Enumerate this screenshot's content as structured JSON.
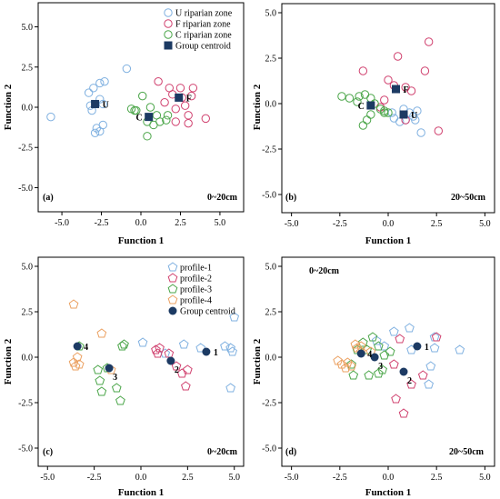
{
  "colors": {
    "blue": "#7fb0e0",
    "pink": "#d0406e",
    "green": "#4aa548",
    "orange": "#eba060",
    "navy": "#1c3a63",
    "axis": "#000000"
  },
  "chart_data": [
    {
      "type": "scatter",
      "panel": "(a)",
      "depth_label": "0~20cm",
      "xlabel": "Function 1",
      "ylabel": "Function 2",
      "xlim": [
        -6.5,
        6.5
      ],
      "ylim": [
        -6.5,
        6.5
      ],
      "xticks": [
        "-5.0",
        "-2.5",
        "0.0",
        "2.5",
        "5.0"
      ],
      "yticks": [
        "-5.0",
        "-2.5",
        "0.0",
        "2.5",
        "5.0"
      ],
      "marker": "circle",
      "legend": {
        "placement": "top-right",
        "entries": [
          {
            "label": "U riparian zone",
            "color": "blue",
            "marker": "circle"
          },
          {
            "label": "F riparian zone",
            "color": "pink",
            "marker": "circle"
          },
          {
            "label": "C riparian zone",
            "color": "green",
            "marker": "circle"
          },
          {
            "label": "Group centroid",
            "color": "navy",
            "marker": "square"
          }
        ]
      },
      "series": [
        {
          "name": "U riparian zone",
          "color": "blue",
          "points": [
            [
              -5.7,
              -0.6
            ],
            [
              -3.3,
              0.9
            ],
            [
              -3.0,
              1.2
            ],
            [
              -2.6,
              1.5
            ],
            [
              -2.3,
              1.6
            ],
            [
              -2.6,
              0.5
            ],
            [
              -2.4,
              0.2
            ],
            [
              -3.2,
              0.1
            ],
            [
              -3.1,
              -0.2
            ],
            [
              -2.8,
              -1.3
            ],
            [
              -2.9,
              -1.6
            ],
            [
              -2.6,
              -1.5
            ],
            [
              -2.4,
              -1.1
            ],
            [
              -0.9,
              2.4
            ]
          ]
        },
        {
          "name": "F riparian zone",
          "color": "pink",
          "points": [
            [
              1.1,
              1.6
            ],
            [
              1.8,
              1.2
            ],
            [
              2.5,
              1.2
            ],
            [
              3.3,
              1.2
            ],
            [
              2.0,
              0.8
            ],
            [
              2.6,
              0.6
            ],
            [
              3.2,
              0.7
            ],
            [
              2.8,
              0.1
            ],
            [
              2.2,
              -0.1
            ],
            [
              3.0,
              -0.5
            ],
            [
              2.2,
              -0.9
            ],
            [
              3.0,
              -1.0
            ],
            [
              4.1,
              -0.7
            ],
            [
              1.5,
              0.3
            ]
          ]
        },
        {
          "name": "C riparian zone",
          "color": "green",
          "points": [
            [
              -0.6,
              -0.1
            ],
            [
              -0.3,
              -0.2
            ],
            [
              0.1,
              0.7
            ],
            [
              0.6,
              0.0
            ],
            [
              0.4,
              -0.9
            ],
            [
              0.8,
              -1.1
            ],
            [
              1.2,
              -0.9
            ],
            [
              1.6,
              -0.8
            ],
            [
              1.7,
              -0.5
            ],
            [
              1.0,
              -0.5
            ],
            [
              0.4,
              -1.8
            ],
            [
              -0.4,
              -0.2
            ]
          ]
        }
      ],
      "centroids": [
        {
          "label": "U",
          "x": -2.9,
          "y": 0.2
        },
        {
          "label": "F",
          "x": 2.4,
          "y": 0.6
        },
        {
          "label": "C",
          "x": 0.5,
          "y": -0.6
        }
      ]
    },
    {
      "type": "scatter",
      "panel": "(b)",
      "depth_label": "20~50cm",
      "xlabel": "Function 1",
      "ylabel": "Function 2",
      "xlim": [
        -5.5,
        5.5
      ],
      "ylim": [
        -6.0,
        5.5
      ],
      "xticks": [
        "-5.0",
        "-2.5",
        "0.0",
        "2.5",
        "5.0"
      ],
      "yticks": [
        "-5.0",
        "-2.5",
        "0.0",
        "2.5",
        "5.0"
      ],
      "marker": "circle",
      "series": [
        {
          "name": "U riparian zone",
          "color": "blue",
          "points": [
            [
              0.3,
              -0.8
            ],
            [
              0.6,
              -1.0
            ],
            [
              0.9,
              -0.9
            ],
            [
              1.1,
              -0.5
            ],
            [
              1.3,
              -0.7
            ],
            [
              1.5,
              -0.4
            ],
            [
              1.4,
              -0.9
            ],
            [
              1.7,
              -1.6
            ],
            [
              0.8,
              -0.3
            ],
            [
              0.2,
              -0.5
            ]
          ]
        },
        {
          "name": "F riparian zone",
          "color": "pink",
          "points": [
            [
              -1.3,
              1.8
            ],
            [
              0.5,
              2.6
            ],
            [
              2.1,
              3.4
            ],
            [
              1.9,
              1.8
            ],
            [
              0.0,
              1.3
            ],
            [
              0.3,
              1.0
            ],
            [
              0.9,
              0.9
            ],
            [
              1.2,
              0.7
            ],
            [
              -0.4,
              -0.2
            ],
            [
              2.6,
              -1.5
            ],
            [
              0.9,
              -0.9
            ],
            [
              -0.2,
              0.2
            ]
          ]
        },
        {
          "name": "C riparian zone",
          "color": "green",
          "points": [
            [
              -2.4,
              0.4
            ],
            [
              -2.0,
              0.3
            ],
            [
              -1.5,
              0.4
            ],
            [
              -1.2,
              0.5
            ],
            [
              -0.9,
              0.3
            ],
            [
              -0.7,
              0.0
            ],
            [
              -0.9,
              -0.6
            ],
            [
              -1.1,
              -0.9
            ],
            [
              -1.3,
              -1.2
            ],
            [
              -0.4,
              -0.3
            ],
            [
              -0.2,
              -0.4
            ],
            [
              0.0,
              -0.5
            ],
            [
              -0.2,
              -0.5
            ],
            [
              -1.6,
              0.1
            ]
          ]
        }
      ],
      "centroids": [
        {
          "label": "F",
          "x": 0.4,
          "y": 0.8
        },
        {
          "label": "C",
          "x": -0.9,
          "y": -0.1
        },
        {
          "label": "U",
          "x": 0.8,
          "y": -0.6
        }
      ]
    },
    {
      "type": "scatter",
      "panel": "(c)",
      "depth_label": "0~20cm",
      "xlabel": "Function 1",
      "ylabel": "Function 2",
      "xlim": [
        -5.5,
        5.5
      ],
      "ylim": [
        -6.0,
        5.5
      ],
      "xticks": [
        "-5.0",
        "-2.5",
        "0.0",
        "2.5",
        "5.0"
      ],
      "yticks": [
        "-5.0",
        "-2.5",
        "0.0",
        "2.5",
        "5.0"
      ],
      "marker": "pentagon",
      "legend": {
        "placement": "top-right",
        "entries": [
          {
            "label": "profile-1",
            "color": "blue",
            "marker": "pentagon"
          },
          {
            "label": "profile-2",
            "color": "pink",
            "marker": "pentagon"
          },
          {
            "label": "profile-3",
            "color": "green",
            "marker": "pentagon"
          },
          {
            "label": "profile-4",
            "color": "orange",
            "marker": "pentagon"
          },
          {
            "label": "Group centroid",
            "color": "navy",
            "marker": "dot"
          }
        ]
      },
      "series": [
        {
          "name": "profile-1",
          "color": "blue",
          "points": [
            [
              0.1,
              0.8
            ],
            [
              2.3,
              0.7
            ],
            [
              4.5,
              0.6
            ],
            [
              4.8,
              0.5
            ],
            [
              4.9,
              0.3
            ],
            [
              5.0,
              2.2
            ],
            [
              4.8,
              -1.7
            ],
            [
              3.2,
              0.5
            ],
            [
              1.3,
              0.2
            ]
          ]
        },
        {
          "name": "profile-2",
          "color": "pink",
          "points": [
            [
              0.8,
              0.4
            ],
            [
              1.0,
              0.5
            ],
            [
              1.5,
              0.2
            ],
            [
              1.9,
              -0.5
            ],
            [
              2.2,
              -0.9
            ],
            [
              2.4,
              -1.6
            ],
            [
              2.5,
              -0.7
            ],
            [
              0.9,
              0.2
            ]
          ]
        },
        {
          "name": "profile-3",
          "color": "green",
          "points": [
            [
              -2.3,
              -0.7
            ],
            [
              -2.2,
              -1.3
            ],
            [
              -2.1,
              -1.9
            ],
            [
              -1.3,
              -1.7
            ],
            [
              -1.1,
              -2.4
            ],
            [
              -1.0,
              0.6
            ],
            [
              -0.9,
              0.7
            ],
            [
              -1.8,
              -0.6
            ],
            [
              -3.3,
              0.6
            ]
          ]
        },
        {
          "name": "profile-4",
          "color": "orange",
          "points": [
            [
              -3.6,
              2.9
            ],
            [
              -3.6,
              -0.3
            ],
            [
              -3.5,
              -0.5
            ],
            [
              -3.4,
              0.0
            ],
            [
              -2.1,
              1.3
            ],
            [
              -1.6,
              -0.7
            ],
            [
              -3.3,
              -0.4
            ]
          ]
        }
      ],
      "centroids": [
        {
          "label": "4",
          "x": -3.4,
          "y": 0.6
        },
        {
          "label": "3",
          "x": -1.7,
          "y": -0.6
        },
        {
          "label": "2",
          "x": 1.6,
          "y": -0.2
        },
        {
          "label": "1",
          "x": 3.5,
          "y": 0.3
        }
      ]
    },
    {
      "type": "scatter",
      "panel": "(d)",
      "depth_label": "20~50cm",
      "top_label": "0~20cm",
      "xlabel": "Function 1",
      "ylabel": "Function 2",
      "xlim": [
        -5.5,
        5.5
      ],
      "ylim": [
        -6.0,
        5.5
      ],
      "xticks": [
        "-5.0",
        "-2.5",
        "0.0",
        "2.5",
        "5.0"
      ],
      "yticks": [
        "-5.0",
        "-2.5",
        "0.0",
        "2.5",
        "5.0"
      ],
      "marker": "pentagon",
      "series": [
        {
          "name": "profile-1",
          "color": "blue",
          "points": [
            [
              -0.2,
              0.6
            ],
            [
              0.3,
              1.4
            ],
            [
              1.1,
              1.6
            ],
            [
              2.4,
              1.1
            ],
            [
              2.4,
              0.5
            ],
            [
              3.7,
              0.4
            ],
            [
              2.2,
              -0.5
            ],
            [
              2.1,
              -1.5
            ],
            [
              1.2,
              0.4
            ],
            [
              -0.6,
              0.9
            ]
          ]
        },
        {
          "name": "profile-2",
          "color": "pink",
          "points": [
            [
              0.3,
              -0.4
            ],
            [
              0.4,
              -2.3
            ],
            [
              0.8,
              -3.1
            ],
            [
              1.2,
              -1.5
            ],
            [
              1.8,
              -1.0
            ],
            [
              2.5,
              1.1
            ],
            [
              0.6,
              1.0
            ]
          ]
        },
        {
          "name": "profile-3",
          "color": "green",
          "points": [
            [
              -1.8,
              -1.0
            ],
            [
              -1.0,
              -1.0
            ],
            [
              -0.5,
              -0.9
            ],
            [
              -0.3,
              -0.7
            ],
            [
              -0.2,
              0.1
            ],
            [
              -0.5,
              0.6
            ],
            [
              -0.8,
              1.1
            ],
            [
              -1.3,
              0.8
            ],
            [
              -1.6,
              0.4
            ],
            [
              -1.9,
              -0.4
            ],
            [
              0.1,
              0.3
            ],
            [
              -1.1,
              0.4
            ]
          ]
        },
        {
          "name": "profile-4",
          "color": "orange",
          "points": [
            [
              -2.6,
              -0.2
            ],
            [
              -2.4,
              -0.4
            ],
            [
              -2.2,
              -0.6
            ],
            [
              -1.9,
              -0.5
            ],
            [
              -1.6,
              0.5
            ],
            [
              -1.4,
              0.6
            ],
            [
              -1.7,
              0.7
            ],
            [
              -1.4,
              0.3
            ],
            [
              -2.1,
              -0.3
            ],
            [
              -0.9,
              0.3
            ]
          ]
        }
      ],
      "centroids": [
        {
          "label": "1",
          "x": 1.5,
          "y": 0.6
        },
        {
          "label": "3",
          "x": -0.7,
          "y": 0.0
        },
        {
          "label": "4",
          "x": -1.4,
          "y": 0.2
        },
        {
          "label": "2",
          "x": 0.8,
          "y": -0.8
        }
      ]
    }
  ]
}
